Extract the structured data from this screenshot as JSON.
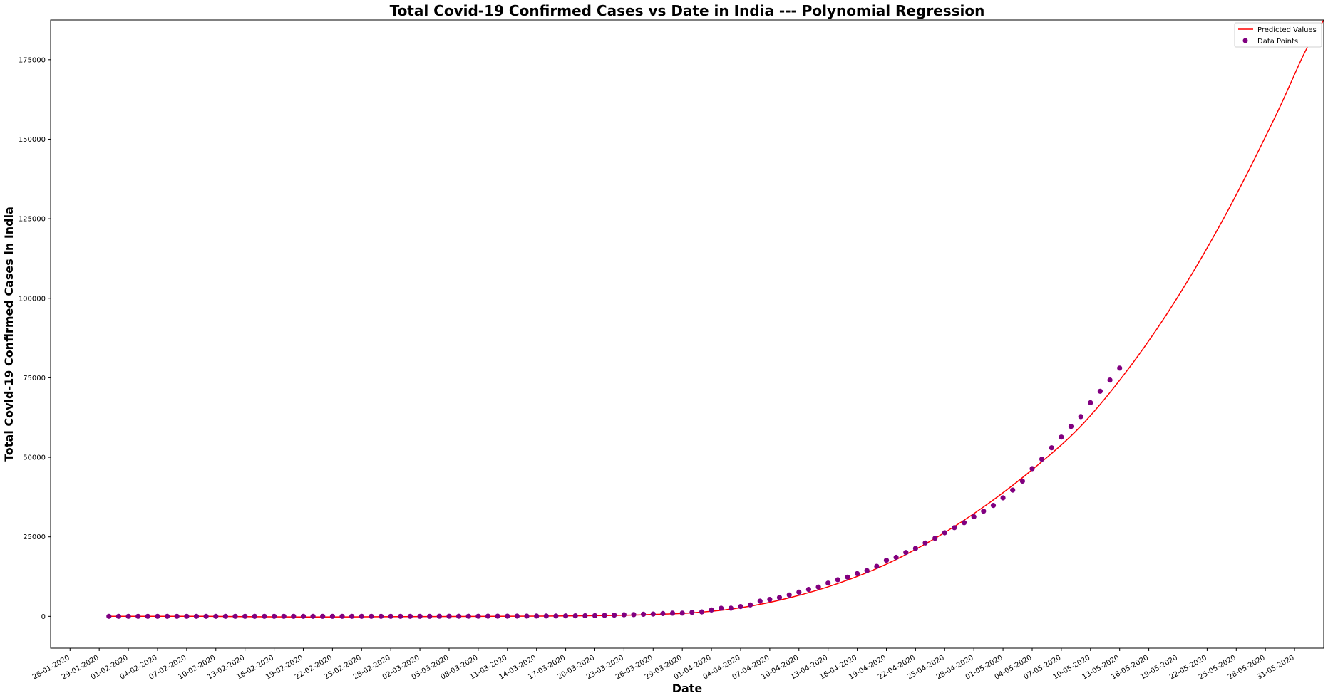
{
  "chart_data": {
    "type": "scatter",
    "title": "Total Covid-19 Confirmed Cases vs Date in India --- Polynomial Regression",
    "xlabel": "Date",
    "ylabel": "Total Covid-19 Confirmed Cases in India",
    "xlim": [
      "2020-01-24",
      "2020-06-03"
    ],
    "ylim": [
      -10000,
      187500
    ],
    "grid": false,
    "legend_position": "top-right",
    "x_tick_labels": [
      "26-01-2020",
      "29-01-2020",
      "01-02-2020",
      "04-02-2020",
      "07-02-2020",
      "10-02-2020",
      "13-02-2020",
      "16-02-2020",
      "19-02-2020",
      "22-02-2020",
      "25-02-2020",
      "28-02-2020",
      "02-03-2020",
      "05-03-2020",
      "08-03-2020",
      "11-03-2020",
      "14-03-2020",
      "17-03-2020",
      "20-03-2020",
      "23-03-2020",
      "26-03-2020",
      "29-03-2020",
      "01-04-2020",
      "04-04-2020",
      "07-04-2020",
      "10-04-2020",
      "13-04-2020",
      "16-04-2020",
      "19-04-2020",
      "22-04-2020",
      "25-04-2020",
      "28-04-2020",
      "01-05-2020",
      "04-05-2020",
      "07-05-2020",
      "10-05-2020",
      "13-05-2020",
      "16-05-2020",
      "19-05-2020",
      "22-05-2020",
      "25-05-2020",
      "28-05-2020",
      "31-05-2020"
    ],
    "y_ticks": [
      0,
      25000,
      50000,
      75000,
      100000,
      125000,
      150000,
      175000
    ],
    "colors": {
      "predicted": "#ff0000",
      "points": "#800080"
    },
    "series": [
      {
        "name": "Predicted Values",
        "kind": "line",
        "points": [
          [
            "2020-01-30",
            0
          ],
          [
            "2020-02-09",
            0
          ],
          [
            "2020-02-19",
            -200
          ],
          [
            "2020-02-29",
            -100
          ],
          [
            "2020-03-10",
            0
          ],
          [
            "2020-03-16",
            100
          ],
          [
            "2020-03-20",
            200
          ],
          [
            "2020-03-25",
            500
          ],
          [
            "2020-03-30",
            1100
          ],
          [
            "2020-04-04",
            2700
          ],
          [
            "2020-04-09",
            5800
          ],
          [
            "2020-04-14",
            10300
          ],
          [
            "2020-04-19",
            16400
          ],
          [
            "2020-04-24",
            24500
          ],
          [
            "2020-04-29",
            34400
          ],
          [
            "2020-05-04",
            46100
          ],
          [
            "2020-05-09",
            59800
          ],
          [
            "2020-05-14",
            78200
          ],
          [
            "2020-05-19",
            100500
          ],
          [
            "2020-05-24",
            126800
          ],
          [
            "2020-05-29",
            157000
          ],
          [
            "2020-06-01",
            177000
          ],
          [
            "2020-06-03",
            187500
          ]
        ]
      },
      {
        "name": "Data Points",
        "kind": "scatter",
        "points": [
          [
            "2020-01-30",
            1
          ],
          [
            "2020-01-31",
            1
          ],
          [
            "2020-02-01",
            1
          ],
          [
            "2020-02-02",
            2
          ],
          [
            "2020-02-03",
            3
          ],
          [
            "2020-02-04",
            3
          ],
          [
            "2020-02-05",
            3
          ],
          [
            "2020-02-06",
            3
          ],
          [
            "2020-02-07",
            3
          ],
          [
            "2020-02-08",
            3
          ],
          [
            "2020-02-09",
            3
          ],
          [
            "2020-02-10",
            3
          ],
          [
            "2020-02-11",
            3
          ],
          [
            "2020-02-12",
            3
          ],
          [
            "2020-02-13",
            3
          ],
          [
            "2020-02-14",
            3
          ],
          [
            "2020-02-15",
            3
          ],
          [
            "2020-02-16",
            3
          ],
          [
            "2020-02-17",
            3
          ],
          [
            "2020-02-18",
            3
          ],
          [
            "2020-02-19",
            3
          ],
          [
            "2020-02-20",
            3
          ],
          [
            "2020-02-21",
            3
          ],
          [
            "2020-02-22",
            3
          ],
          [
            "2020-02-23",
            3
          ],
          [
            "2020-02-24",
            3
          ],
          [
            "2020-02-25",
            3
          ],
          [
            "2020-02-26",
            3
          ],
          [
            "2020-02-27",
            3
          ],
          [
            "2020-02-28",
            3
          ],
          [
            "2020-02-29",
            3
          ],
          [
            "2020-03-01",
            3
          ],
          [
            "2020-03-02",
            5
          ],
          [
            "2020-03-03",
            6
          ],
          [
            "2020-03-04",
            28
          ],
          [
            "2020-03-05",
            30
          ],
          [
            "2020-03-06",
            31
          ],
          [
            "2020-03-07",
            34
          ],
          [
            "2020-03-08",
            39
          ],
          [
            "2020-03-09",
            43
          ],
          [
            "2020-03-10",
            56
          ],
          [
            "2020-03-11",
            62
          ],
          [
            "2020-03-12",
            73
          ],
          [
            "2020-03-13",
            82
          ],
          [
            "2020-03-14",
            102
          ],
          [
            "2020-03-15",
            113
          ],
          [
            "2020-03-16",
            119
          ],
          [
            "2020-03-17",
            142
          ],
          [
            "2020-03-18",
            156
          ],
          [
            "2020-03-19",
            194
          ],
          [
            "2020-03-20",
            244
          ],
          [
            "2020-03-21",
            330
          ],
          [
            "2020-03-22",
            396
          ],
          [
            "2020-03-23",
            499
          ],
          [
            "2020-03-24",
            536
          ],
          [
            "2020-03-25",
            657
          ],
          [
            "2020-03-26",
            727
          ],
          [
            "2020-03-27",
            887
          ],
          [
            "2020-03-28",
            987
          ],
          [
            "2020-03-29",
            1024
          ],
          [
            "2020-03-30",
            1251
          ],
          [
            "2020-03-31",
            1397
          ],
          [
            "2020-04-01",
            1998
          ],
          [
            "2020-04-02",
            2543
          ],
          [
            "2020-04-03",
            2567
          ],
          [
            "2020-04-04",
            3082
          ],
          [
            "2020-04-05",
            3588
          ],
          [
            "2020-04-06",
            4778
          ],
          [
            "2020-04-07",
            5311
          ],
          [
            "2020-04-08",
            5916
          ],
          [
            "2020-04-09",
            6725
          ],
          [
            "2020-04-10",
            7598
          ],
          [
            "2020-04-11",
            8446
          ],
          [
            "2020-04-12",
            9205
          ],
          [
            "2020-04-13",
            10453
          ],
          [
            "2020-04-14",
            11487
          ],
          [
            "2020-04-15",
            12322
          ],
          [
            "2020-04-16",
            13430
          ],
          [
            "2020-04-17",
            14352
          ],
          [
            "2020-04-18",
            15722
          ],
          [
            "2020-04-19",
            17615
          ],
          [
            "2020-04-20",
            18539
          ],
          [
            "2020-04-21",
            20080
          ],
          [
            "2020-04-22",
            21370
          ],
          [
            "2020-04-23",
            23077
          ],
          [
            "2020-04-24",
            24530
          ],
          [
            "2020-04-25",
            26283
          ],
          [
            "2020-04-26",
            27890
          ],
          [
            "2020-04-27",
            29451
          ],
          [
            "2020-04-28",
            31324
          ],
          [
            "2020-04-29",
            33062
          ],
          [
            "2020-04-30",
            34863
          ],
          [
            "2020-05-01",
            37257
          ],
          [
            "2020-05-02",
            39699
          ],
          [
            "2020-05-03",
            42505
          ],
          [
            "2020-05-04",
            46437
          ],
          [
            "2020-05-05",
            49400
          ],
          [
            "2020-05-06",
            52987
          ],
          [
            "2020-05-07",
            56351
          ],
          [
            "2020-05-08",
            59695
          ],
          [
            "2020-05-09",
            62808
          ],
          [
            "2020-05-10",
            67161
          ],
          [
            "2020-05-11",
            70768
          ],
          [
            "2020-05-12",
            74292
          ],
          [
            "2020-05-13",
            78055
          ]
        ]
      }
    ]
  }
}
